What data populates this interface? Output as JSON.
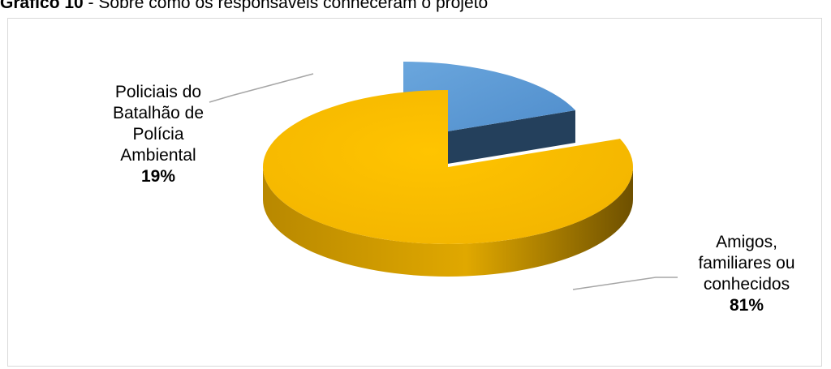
{
  "caption": {
    "number": "Gráfico 10",
    "separator": " - ",
    "text": "Sobre como os responsáveis conheceram o projeto"
  },
  "chart_data": {
    "type": "pie",
    "style": "3d-exploded",
    "title": "",
    "legend": "none",
    "slices": [
      {
        "label_lines": [
          "Policiais do",
          "Batalhão de",
          "Polícia",
          "Ambiental"
        ],
        "value": 19,
        "value_label": "19%",
        "color": "#5b9bd5",
        "side_color": "#24405c"
      },
      {
        "label_lines": [
          "Amigos,",
          "familiares ou",
          "conhecidos"
        ],
        "value": 81,
        "value_label": "81%",
        "color": "#f9bc00",
        "side_color": "#7a5a00"
      }
    ]
  }
}
